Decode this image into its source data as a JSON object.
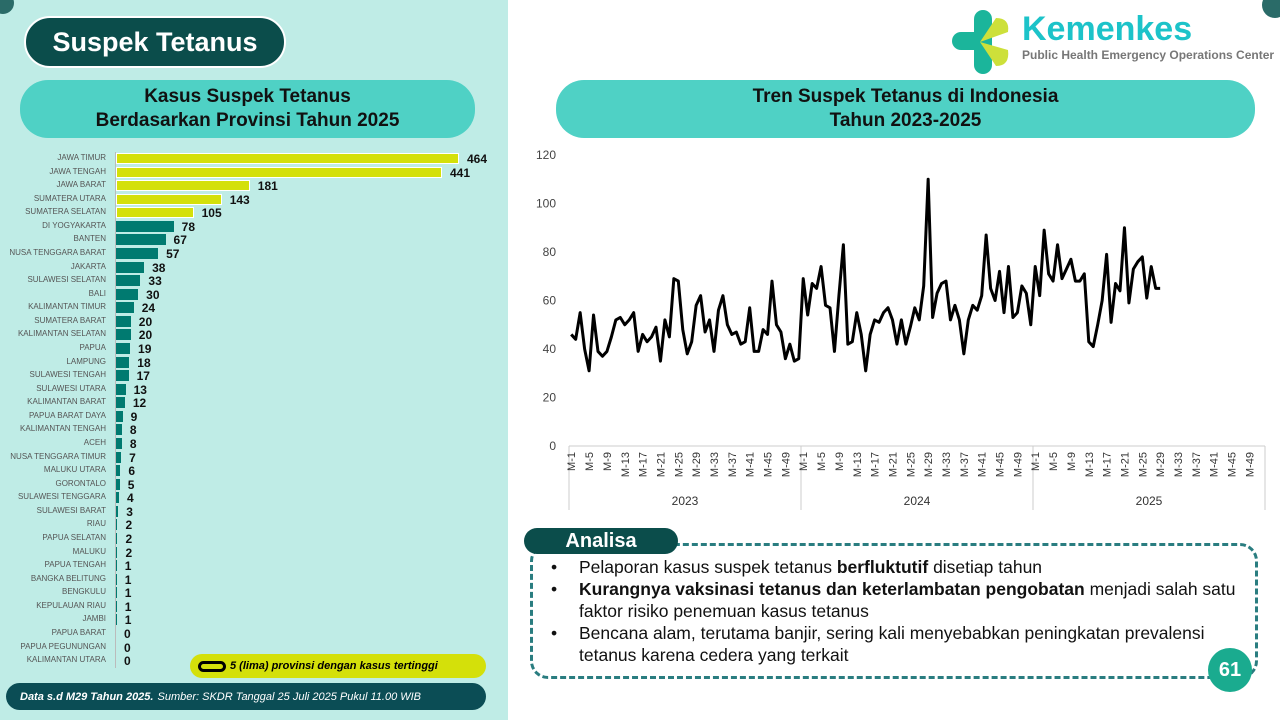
{
  "header": {
    "title": "Suspek Tetanus"
  },
  "logo": {
    "name": "Kemenkes",
    "subtitle": "Public Health Emergency Operations Center"
  },
  "colors": {
    "highlight": "#d4e00a",
    "bar": "#007a70",
    "pill": "#4fd1c5",
    "dark": "#0b4d4b"
  },
  "chart_data": [
    {
      "type": "bar",
      "orientation": "horizontal",
      "title": "Kasus Suspek Tetanus Berdasarkan Provinsi Tahun 2025",
      "title_lines": [
        "Kasus Suspek Tetanus",
        "Berdasarkan Provinsi Tahun 2025"
      ],
      "categories": [
        "JAWA TIMUR",
        "JAWA TENGAH",
        "JAWA BARAT",
        "SUMATERA UTARA",
        "SUMATERA SELATAN",
        "DI YOGYAKARTA",
        "BANTEN",
        "NUSA TENGGARA BARAT",
        "JAKARTA",
        "SULAWESI SELATAN",
        "BALI",
        "KALIMANTAN TIMUR",
        "SUMATERA BARAT",
        "KALIMANTAN SELATAN",
        "PAPUA",
        "LAMPUNG",
        "SULAWESI TENGAH",
        "SULAWESI UTARA",
        "KALIMANTAN BARAT",
        "PAPUA BARAT DAYA",
        "KALIMANTAN TENGAH",
        "ACEH",
        "NUSA TENGGARA TIMUR",
        "MALUKU UTARA",
        "GORONTALO",
        "SULAWESI TENGGARA",
        "SULAWESI BARAT",
        "RIAU",
        "PAPUA SELATAN",
        "MALUKU",
        "PAPUA TENGAH",
        "BANGKA BELITUNG",
        "BENGKULU",
        "KEPULAUAN RIAU",
        "JAMBI",
        "PAPUA BARAT",
        "PAPUA PEGUNUNGAN",
        "KALIMANTAN UTARA"
      ],
      "values": [
        464,
        441,
        181,
        143,
        105,
        78,
        67,
        57,
        38,
        33,
        30,
        24,
        20,
        20,
        19,
        18,
        17,
        13,
        12,
        9,
        8,
        8,
        7,
        6,
        5,
        4,
        3,
        2,
        2,
        2,
        1,
        1,
        1,
        1,
        1,
        0,
        0,
        0
      ],
      "highlight_top": 5,
      "legend": "5 (lima) provinsi dengan kasus tertinggi"
    },
    {
      "type": "line",
      "title": "Tren Suspek Tetanus di Indonesia Tahun 2023-2025",
      "title_lines": [
        "Tren Suspek Tetanus di Indonesia",
        "Tahun 2023-2025"
      ],
      "ylim": [
        0,
        120
      ],
      "yticks": [
        0,
        20,
        40,
        60,
        80,
        100,
        120
      ],
      "xtick_labels": [
        "M-1",
        "M-5",
        "M-9",
        "M-13",
        "M-17",
        "M-21",
        "M-25",
        "M-29",
        "M-33",
        "M-37",
        "M-41",
        "M-45",
        "M-49"
      ],
      "series": [
        {
          "name": "2023",
          "values": [
            46,
            44,
            55,
            40,
            31,
            54,
            39,
            37,
            39,
            45,
            52,
            53,
            50,
            52,
            55,
            39,
            46,
            43,
            45,
            49,
            35,
            52,
            45,
            69,
            68,
            48,
            38,
            43,
            58,
            62,
            47,
            52,
            39,
            56,
            62,
            50,
            46,
            47,
            42,
            43,
            57,
            39,
            39,
            48,
            46,
            68,
            50,
            47,
            36,
            42,
            35,
            36
          ]
        },
        {
          "name": "2024",
          "values": [
            69,
            54,
            67,
            65,
            74,
            58,
            57,
            39,
            62,
            83,
            42,
            43,
            55,
            46,
            31,
            46,
            52,
            51,
            55,
            57,
            52,
            42,
            52,
            42,
            49,
            57,
            52,
            66,
            110,
            53,
            63,
            67,
            68,
            52,
            58,
            52,
            38,
            52,
            58,
            56,
            62,
            87,
            65,
            60,
            72,
            55,
            74,
            53,
            55,
            66,
            63,
            50
          ]
        },
        {
          "name": "2025",
          "values": [
            74,
            62,
            89,
            71,
            68,
            83,
            69,
            73,
            77,
            68,
            68,
            71,
            43,
            41,
            50,
            60,
            79,
            51,
            67,
            64,
            90,
            59,
            73,
            76,
            78,
            61,
            74,
            65,
            65
          ]
        }
      ]
    }
  ],
  "footer": {
    "bold": "Data s.d M29 Tahun 2025.",
    "source": "Sumber: SKDR Tanggal 25 Juli 2025 Pukul 11.00 WIB"
  },
  "analysis": {
    "label": "Analisa",
    "items": [
      {
        "pre": "Pelaporan kasus suspek tetanus ",
        "bold": "berfluktutif",
        "post": " disetiap tahun"
      },
      {
        "pre": "",
        "bold": "Kurangnya vaksinasi tetanus dan keterlambatan pengobatan",
        "post": " menjadi salah satu faktor risiko penemuan kasus tetanus"
      },
      {
        "pre": "Bencana alam, terutama banjir, sering kali menyebabkan peningkatan prevalensi tetanus karena cedera yang terkait",
        "bold": "",
        "post": ""
      }
    ]
  },
  "page_number": "61"
}
